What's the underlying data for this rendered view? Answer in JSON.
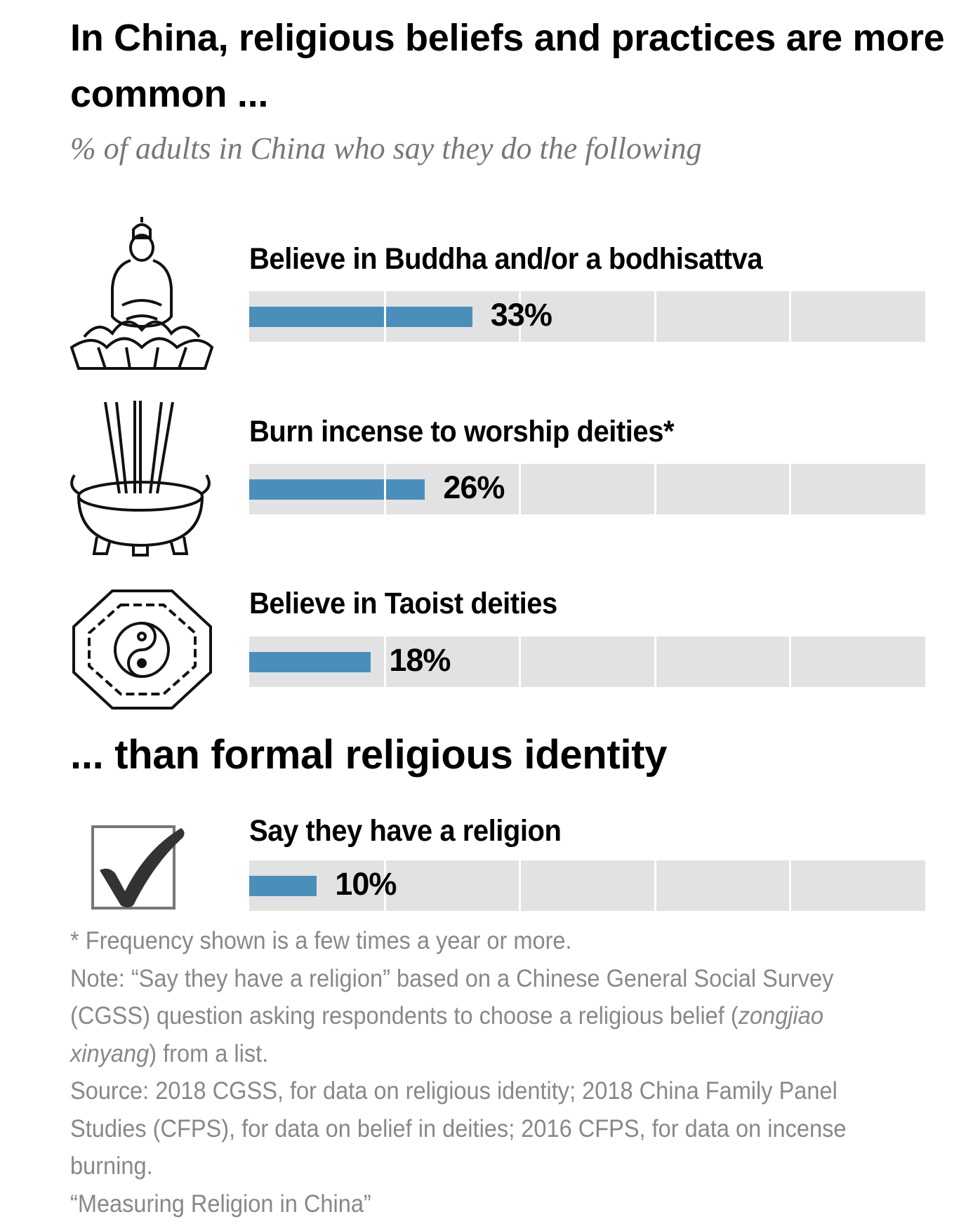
{
  "title": "In China, religious beliefs and practices are more common ...",
  "subtitle": "% of adults in China who say they do the following",
  "heading2": "... than formal religious identity",
  "chart_data": {
    "type": "bar",
    "orientation": "horizontal",
    "xlim": [
      0,
      100
    ],
    "grid": true,
    "bar_color": "#4a8fbc",
    "track_color": "#e2e2e2",
    "categories": [
      "Believe in Buddha and/or a bodhisattva",
      "Burn incense to worship deities*",
      "Believe in Taoist deities",
      "Say they have a religion"
    ],
    "values": [
      33,
      26,
      18,
      10
    ],
    "labels": [
      "33%",
      "26%",
      "18%",
      "10%"
    ],
    "icons": [
      "buddha-icon",
      "incense-burner-icon",
      "yin-yang-bagua-icon",
      "checkbox-checked-icon"
    ]
  },
  "notes": {
    "footnote": "* Frequency shown is a few times a year or more.",
    "note_prefix": "Note: “Say they have a religion” based on a Chinese General Social Survey (CGSS) question asking respondents to choose a religious belief (",
    "note_italic": "zongjiao xinyang",
    "note_suffix": ") from a list.",
    "source": "Source: 2018 CGSS, for data on religious identity; 2018 China Family Panel Studies (CFPS), for data on belief in deities; 2016 CFPS, for data on incense burning.",
    "report": "“Measuring Religion in China”"
  }
}
